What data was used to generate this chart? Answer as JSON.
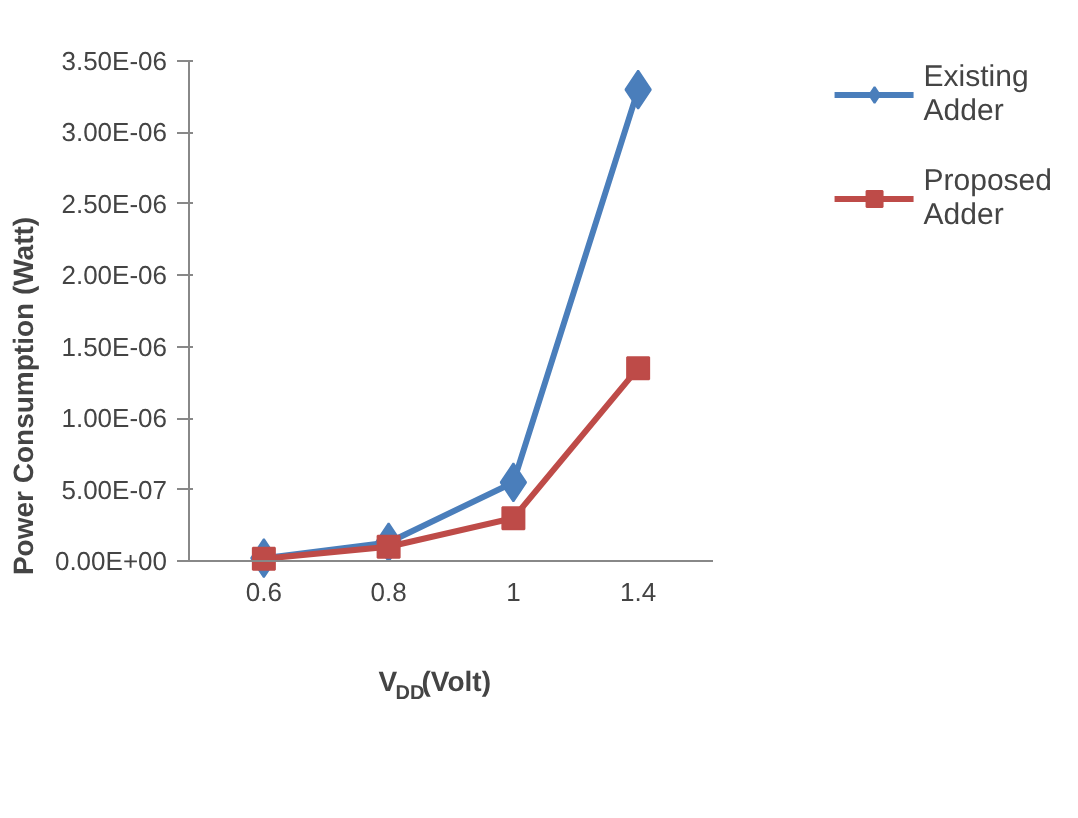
{
  "chart_data": {
    "type": "line",
    "xlabel": "V$_{DD}$(Volt)",
    "ylabel": "Power Consumption (Watt)",
    "categories": [
      "0.6",
      "0.8",
      "1",
      "1.4"
    ],
    "series": [
      {
        "name": "Existing Adder",
        "color": "#4a7ebb",
        "marker": "diamond",
        "values": [
          2e-08,
          1.3e-07,
          5.5e-07,
          3.3e-06
        ]
      },
      {
        "name": "Proposed Adder",
        "color": "#be4b48",
        "marker": "square",
        "values": [
          1.5e-08,
          1e-07,
          3e-07,
          1.35e-06
        ]
      }
    ],
    "ylim": [
      0,
      3.5e-06
    ],
    "yticks": [
      {
        "value": 0,
        "label": "0.00E+00"
      },
      {
        "value": 5e-07,
        "label": "5.00E-07"
      },
      {
        "value": 1e-06,
        "label": "1.00E-06"
      },
      {
        "value": 1.5e-06,
        "label": "1.50E-06"
      },
      {
        "value": 2e-06,
        "label": "2.00E-06"
      },
      {
        "value": 2.5e-06,
        "label": "2.50E-06"
      },
      {
        "value": 3e-06,
        "label": "3.00E-06"
      },
      {
        "value": 3.5e-06,
        "label": "3.50E-06"
      }
    ],
    "grid": false,
    "legend": "right",
    "line_style": "solid"
  }
}
